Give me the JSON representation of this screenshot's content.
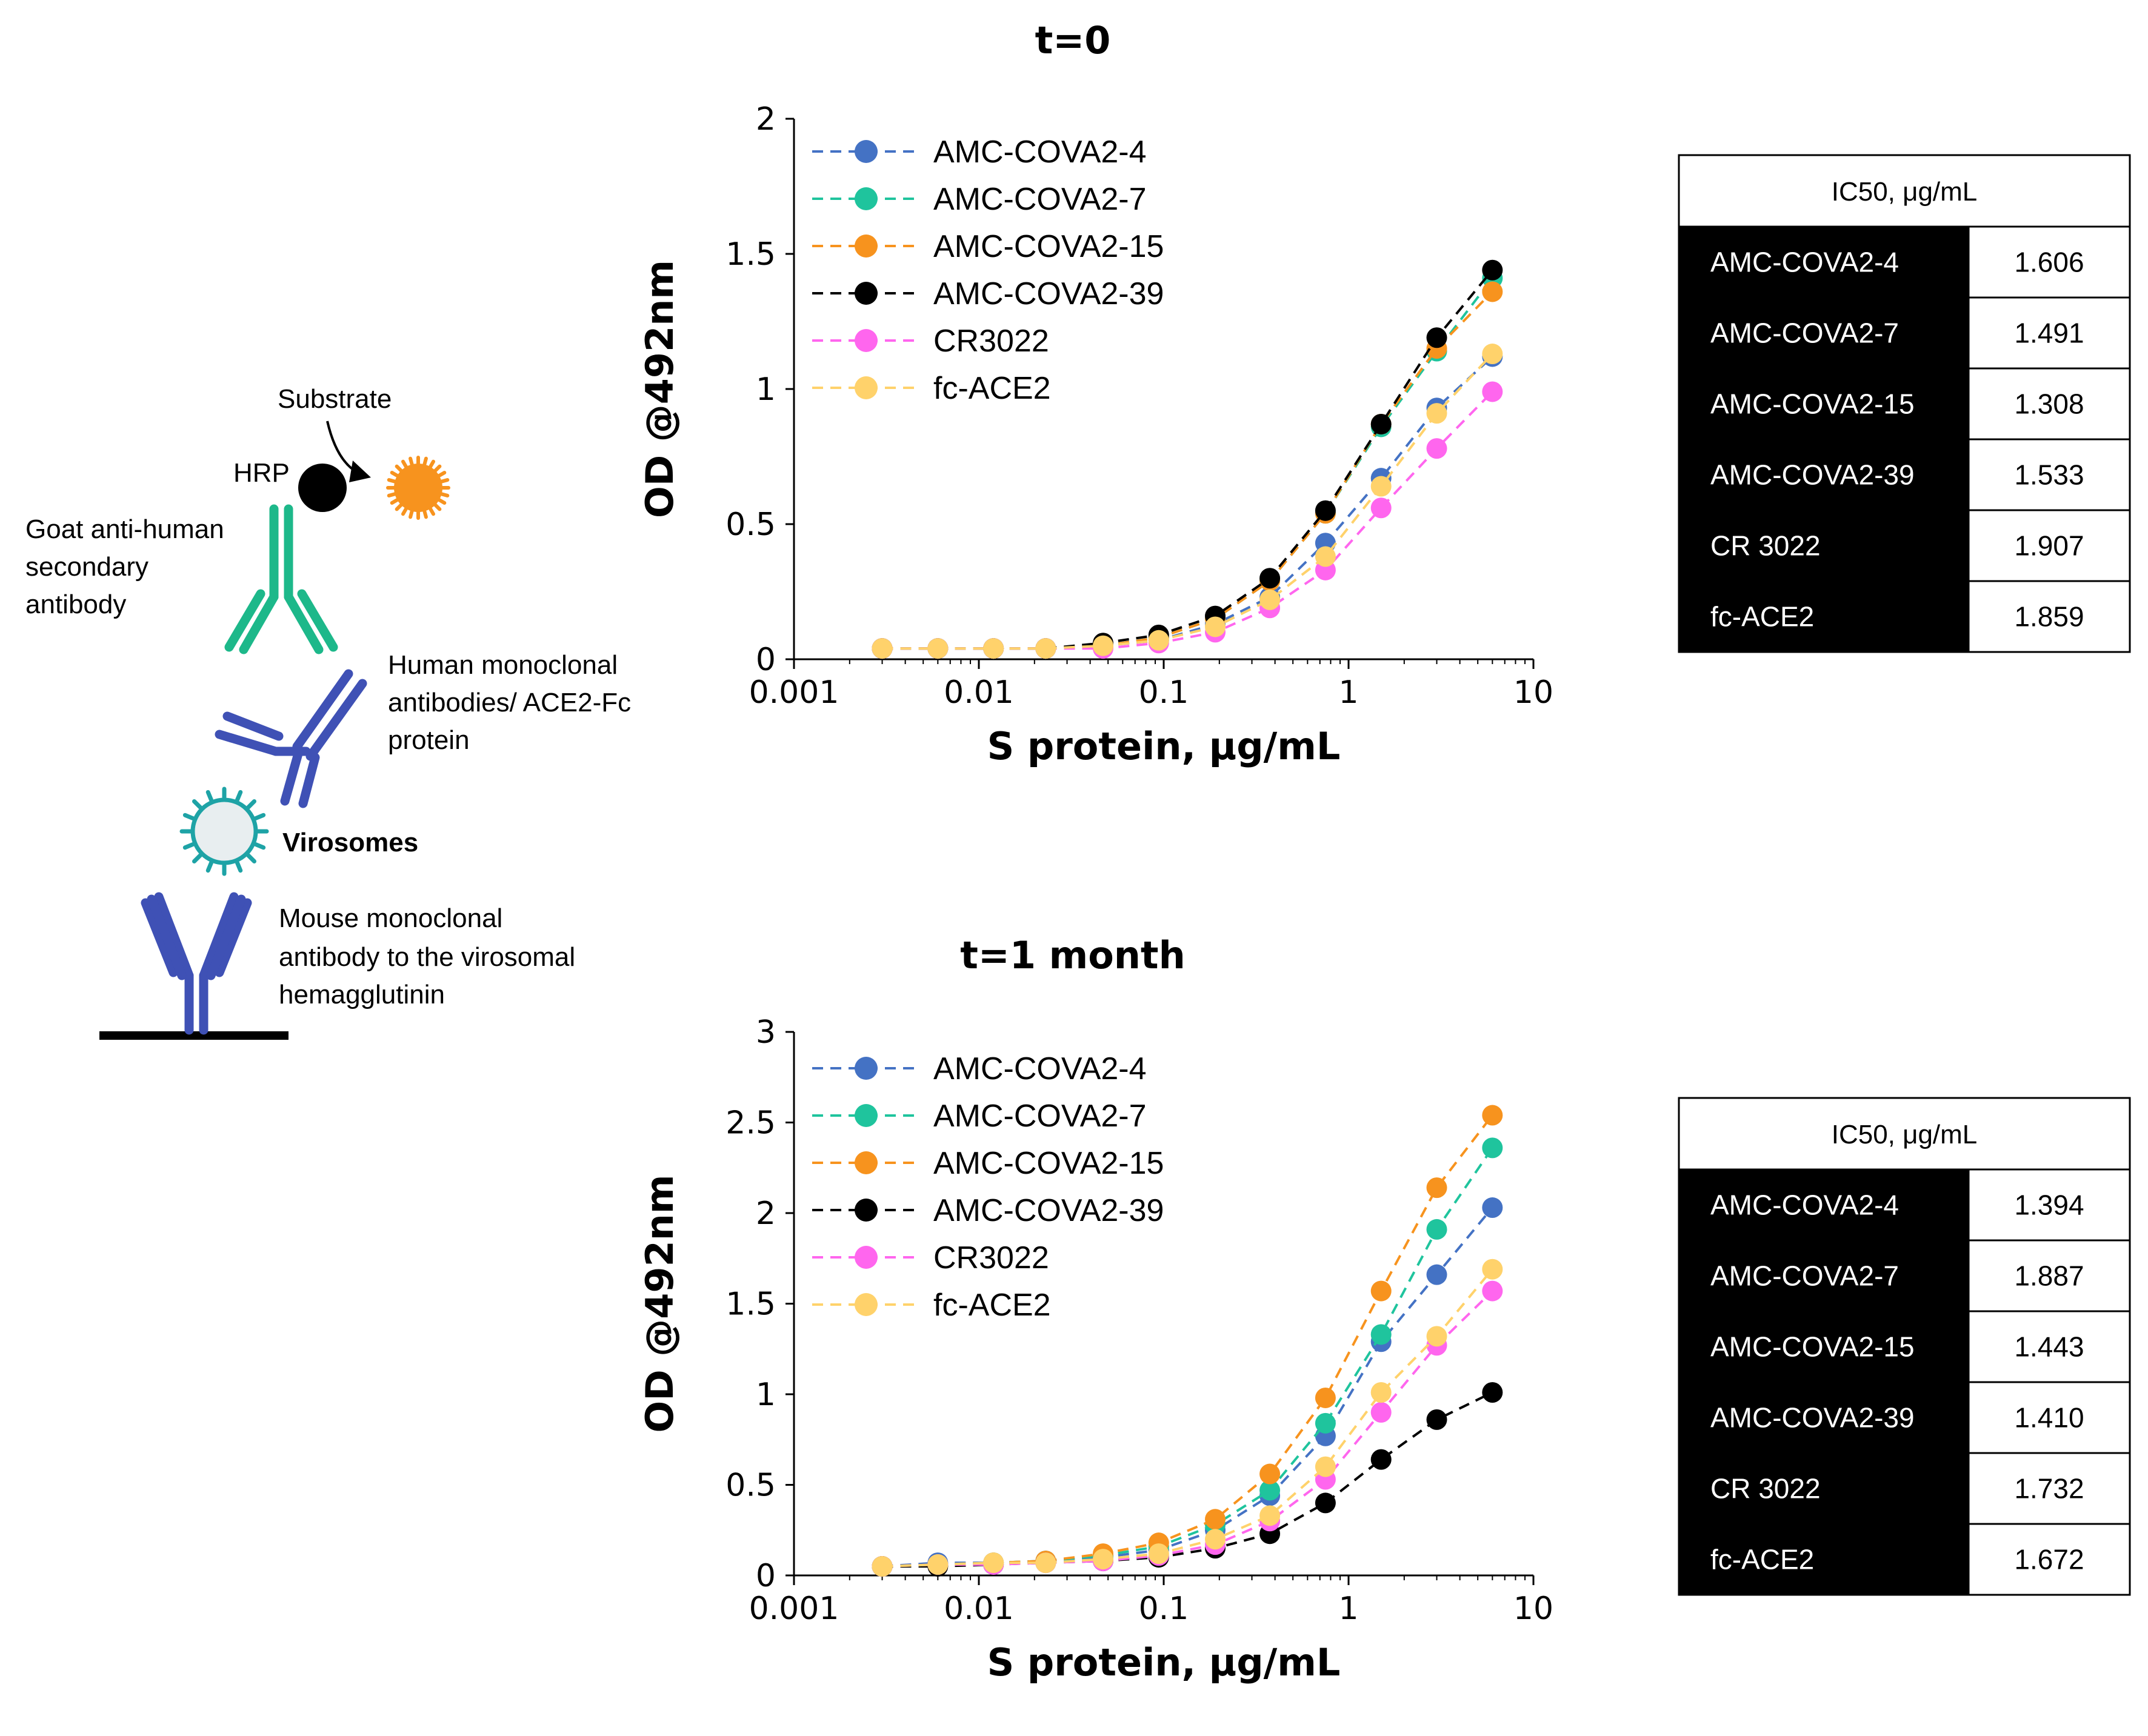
{
  "diagram": {
    "substrate_label": "Substrate",
    "hrp_label": "HRP",
    "secondary_label": [
      "Goat anti-human",
      "secondary",
      "antibody"
    ],
    "human_label": [
      "Human monoclonal",
      "antibodies/ ACE2-Fc",
      "protein"
    ],
    "virosomes_label": "Virosomes",
    "mouse_label": [
      "Mouse monoclonal",
      "antibody to the virosomal",
      "hemagglutinin"
    ]
  },
  "chart_data": [
    {
      "type": "line",
      "title": "t=0",
      "xlabel": "S protein, μg/mL",
      "ylabel": "OD @492nm",
      "xscale": "log",
      "xlim": [
        0.001,
        10
      ],
      "ylim": [
        0,
        2
      ],
      "x_ticks": [
        0.001,
        0.01,
        0.1,
        1,
        10
      ],
      "x_tick_labels": [
        "0.001",
        "0.01",
        "0.1",
        "1",
        "10"
      ],
      "y_ticks": [
        0,
        0.5,
        1,
        1.5,
        2
      ],
      "y_tick_labels": [
        "0",
        "0.5",
        "1",
        "1.5",
        "2"
      ],
      "grid": false,
      "legend_position": "top-left",
      "x": [
        0.003,
        0.006,
        0.012,
        0.023,
        0.047,
        0.094,
        0.19,
        0.375,
        0.75,
        1.5,
        3,
        6
      ],
      "series": [
        {
          "name": "AMC-COVA2-4",
          "color": "#4472C4",
          "values": [
            0.04,
            0.04,
            0.04,
            0.04,
            0.05,
            0.07,
            0.13,
            0.23,
            0.43,
            0.67,
            0.93,
            1.12
          ]
        },
        {
          "name": "AMC-COVA2-7",
          "color": "#1FC49D",
          "values": [
            0.04,
            0.04,
            0.04,
            0.04,
            0.05,
            0.08,
            0.15,
            0.29,
            0.54,
            0.86,
            1.14,
            1.41
          ]
        },
        {
          "name": "AMC-COVA2-15",
          "color": "#F7931E",
          "values": [
            0.04,
            0.04,
            0.04,
            0.04,
            0.05,
            0.08,
            0.15,
            0.29,
            0.54,
            0.87,
            1.15,
            1.36
          ]
        },
        {
          "name": "AMC-COVA2-39",
          "color": "#000000",
          "values": [
            0.04,
            0.04,
            0.04,
            0.04,
            0.06,
            0.09,
            0.16,
            0.3,
            0.55,
            0.87,
            1.19,
            1.44
          ]
        },
        {
          "name": "CR3022",
          "color": "#FF66EE",
          "values": [
            0.04,
            0.04,
            0.04,
            0.04,
            0.04,
            0.06,
            0.1,
            0.19,
            0.33,
            0.56,
            0.78,
            0.99
          ]
        },
        {
          "name": "fc-ACE2",
          "color": "#FFD26B",
          "values": [
            0.04,
            0.04,
            0.04,
            0.04,
            0.05,
            0.07,
            0.12,
            0.22,
            0.38,
            0.64,
            0.91,
            1.13
          ]
        }
      ]
    },
    {
      "type": "line",
      "title": "t=1 month",
      "xlabel": "S protein, μg/mL",
      "ylabel": "OD @492nm",
      "xscale": "log",
      "xlim": [
        0.001,
        10
      ],
      "ylim": [
        0,
        3
      ],
      "x_ticks": [
        0.001,
        0.01,
        0.1,
        1,
        10
      ],
      "x_tick_labels": [
        "0.001",
        "0.01",
        "0.1",
        "1",
        "10"
      ],
      "y_ticks": [
        0,
        0.5,
        1,
        1.5,
        2,
        2.5,
        3
      ],
      "y_tick_labels": [
        "0",
        "0.5",
        "1",
        "1.5",
        "2",
        "2.5",
        "3"
      ],
      "grid": false,
      "legend_position": "top-left",
      "x": [
        0.003,
        0.006,
        0.012,
        0.023,
        0.047,
        0.094,
        0.19,
        0.375,
        0.75,
        1.5,
        3,
        6
      ],
      "series": [
        {
          "name": "AMC-COVA2-4",
          "color": "#4472C4",
          "values": [
            0.05,
            0.07,
            0.07,
            0.08,
            0.1,
            0.14,
            0.25,
            0.44,
            0.77,
            1.29,
            1.66,
            2.03
          ]
        },
        {
          "name": "AMC-COVA2-7",
          "color": "#1FC49D",
          "values": [
            0.05,
            0.06,
            0.07,
            0.08,
            0.11,
            0.16,
            0.28,
            0.47,
            0.84,
            1.33,
            1.91,
            2.36
          ]
        },
        {
          "name": "AMC-COVA2-15",
          "color": "#F7931E",
          "values": [
            0.05,
            0.06,
            0.07,
            0.08,
            0.12,
            0.18,
            0.31,
            0.56,
            0.98,
            1.57,
            2.14,
            2.54
          ]
        },
        {
          "name": "AMC-COVA2-39",
          "color": "#000000",
          "values": [
            0.05,
            0.05,
            0.06,
            0.07,
            0.08,
            0.1,
            0.15,
            0.23,
            0.4,
            0.64,
            0.86,
            1.01
          ]
        },
        {
          "name": "CR3022",
          "color": "#FF66EE",
          "values": [
            0.05,
            0.06,
            0.06,
            0.07,
            0.08,
            0.11,
            0.17,
            0.3,
            0.53,
            0.9,
            1.27,
            1.57
          ]
        },
        {
          "name": "fc-ACE2",
          "color": "#FFD26B",
          "values": [
            0.05,
            0.06,
            0.07,
            0.07,
            0.09,
            0.12,
            0.2,
            0.33,
            0.6,
            1.01,
            1.32,
            1.69
          ]
        }
      ]
    }
  ],
  "tables": [
    {
      "header": "IC50, μg/mL",
      "rows": [
        {
          "label": "AMC-COVA2-4",
          "value": "1.606"
        },
        {
          "label": "AMC-COVA2-7",
          "value": "1.491"
        },
        {
          "label": "AMC-COVA2-15",
          "value": "1.308"
        },
        {
          "label": "AMC-COVA2-39",
          "value": "1.533"
        },
        {
          "label": "CR 3022",
          "value": "1.907"
        },
        {
          "label": "fc-ACE2",
          "value": "1.859"
        }
      ]
    },
    {
      "header": "IC50, μg/mL",
      "rows": [
        {
          "label": "AMC-COVA2-4",
          "value": "1.394"
        },
        {
          "label": "AMC-COVA2-7",
          "value": "1.887"
        },
        {
          "label": "AMC-COVA2-15",
          "value": "1.443"
        },
        {
          "label": "AMC-COVA2-39",
          "value": "1.410"
        },
        {
          "label": "CR 3022",
          "value": "1.732"
        },
        {
          "label": "fc-ACE2",
          "value": "1.672"
        }
      ]
    }
  ]
}
